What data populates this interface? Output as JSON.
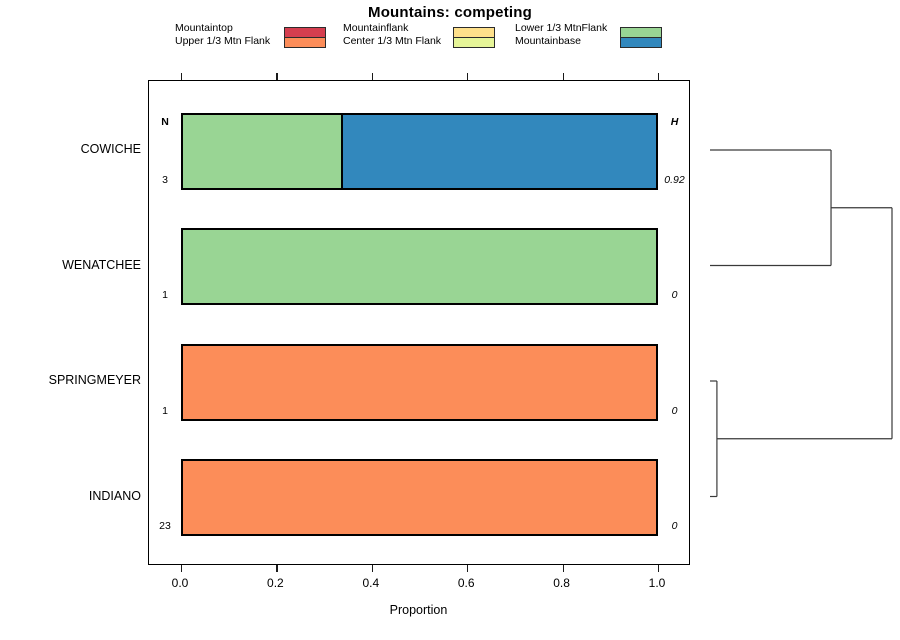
{
  "chart_data": {
    "type": "bar",
    "orientation": "horizontal",
    "stacked": true,
    "title": "Mountains: competing",
    "xlabel": "Proportion",
    "xlim": [
      0,
      1
    ],
    "x_ticks": [
      0.0,
      0.2,
      0.4,
      0.6,
      0.8,
      1.0
    ],
    "x_tick_labels": [
      "0.0",
      "0.2",
      "0.4",
      "0.6",
      "0.8",
      "1.0"
    ],
    "n_header": "N",
    "h_header": "H",
    "categories": [
      {
        "name": "Mountaintop",
        "color": "#D53E4F"
      },
      {
        "name": "Upper 1/3 Mtn Flank",
        "color": "#FC8D59"
      },
      {
        "name": "Mountainflank",
        "color": "#FEE08B"
      },
      {
        "name": "Center 1/3 Mtn Flank",
        "color": "#E6F598"
      },
      {
        "name": "Lower 1/3 MtnFlank",
        "color": "#99D594"
      },
      {
        "name": "Mountainbase",
        "color": "#3288BD"
      }
    ],
    "legend_columns": [
      [
        "Mountaintop",
        "Upper 1/3 Mtn Flank"
      ],
      [
        "Mountainflank",
        "Center 1/3 Mtn Flank"
      ],
      [
        "Lower 1/3 MtnFlank",
        "Mountainbase"
      ]
    ],
    "rows": [
      {
        "label": "COWICHE",
        "n": "3",
        "h": "0.92",
        "segments": [
          {
            "category": "Lower 1/3 MtnFlank",
            "value": 0.333
          },
          {
            "category": "Mountainbase",
            "value": 0.667
          }
        ]
      },
      {
        "label": "WENATCHEE",
        "n": "1",
        "h": "0",
        "segments": [
          {
            "category": "Lower 1/3 MtnFlank",
            "value": 1
          }
        ]
      },
      {
        "label": "SPRINGMEYER",
        "n": "1",
        "h": "0",
        "segments": [
          {
            "category": "Upper 1/3 Mtn Flank",
            "value": 1
          }
        ]
      },
      {
        "label": "INDIANO",
        "n": "23",
        "h": "0",
        "segments": [
          {
            "category": "Upper 1/3 Mtn Flank",
            "value": 1
          }
        ]
      }
    ],
    "dendrogram": {
      "leaf_order": [
        "COWICHE",
        "WENATCHEE",
        "SPRINGMEYER",
        "INDIANO"
      ],
      "merges": [
        {
          "a": 0,
          "b": 1,
          "height": 0.665
        },
        {
          "a": 2,
          "b": 3,
          "height": 0.038
        },
        {
          "a": 4,
          "b": 5,
          "height": 1.0
        }
      ]
    }
  }
}
